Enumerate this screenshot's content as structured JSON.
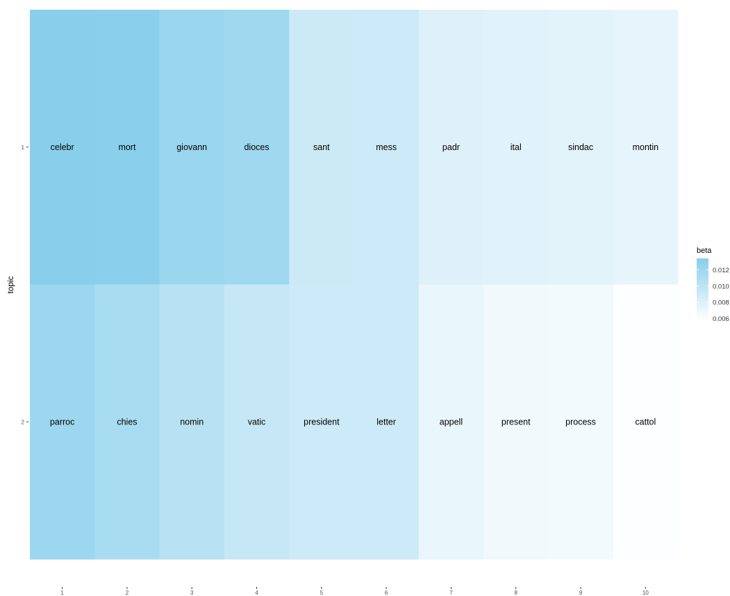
{
  "chart_data": {
    "type": "heatmap",
    "x_categories": [
      "1",
      "2",
      "3",
      "4",
      "5",
      "6",
      "7",
      "8",
      "9",
      "10"
    ],
    "y_categories": [
      "1",
      "2"
    ],
    "xlabel": "",
    "ylabel": "topic",
    "cells": [
      {
        "topic": "1",
        "rank": "1",
        "term": "celebr",
        "beta": 0.0133
      },
      {
        "topic": "1",
        "rank": "2",
        "term": "mort",
        "beta": 0.0132
      },
      {
        "topic": "1",
        "rank": "3",
        "term": "giovann",
        "beta": 0.0122
      },
      {
        "topic": "1",
        "rank": "4",
        "term": "dioces",
        "beta": 0.0119
      },
      {
        "topic": "1",
        "rank": "5",
        "term": "sant",
        "beta": 0.0091
      },
      {
        "topic": "1",
        "rank": "6",
        "term": "mess",
        "beta": 0.009
      },
      {
        "topic": "1",
        "rank": "7",
        "term": "padr",
        "beta": 0.0079
      },
      {
        "topic": "1",
        "rank": "8",
        "term": "ital",
        "beta": 0.0077
      },
      {
        "topic": "1",
        "rank": "9",
        "term": "sindac",
        "beta": 0.0076
      },
      {
        "topic": "1",
        "rank": "10",
        "term": "montin",
        "beta": 0.0074
      },
      {
        "topic": "2",
        "rank": "1",
        "term": "parroc",
        "beta": 0.012
      },
      {
        "topic": "2",
        "rank": "2",
        "term": "chies",
        "beta": 0.0113
      },
      {
        "topic": "2",
        "rank": "3",
        "term": "nomin",
        "beta": 0.0103
      },
      {
        "topic": "2",
        "rank": "4",
        "term": "vatic",
        "beta": 0.0094
      },
      {
        "topic": "2",
        "rank": "5",
        "term": "president",
        "beta": 0.009
      },
      {
        "topic": "2",
        "rank": "6",
        "term": "letter",
        "beta": 0.009
      },
      {
        "topic": "2",
        "rank": "7",
        "term": "appell",
        "beta": 0.0072
      },
      {
        "topic": "2",
        "rank": "8",
        "term": "present",
        "beta": 0.0067
      },
      {
        "topic": "2",
        "rank": "9",
        "term": "process",
        "beta": 0.0066
      },
      {
        "topic": "2",
        "rank": "10",
        "term": "cattol",
        "beta": 0.0059
      }
    ],
    "legend": {
      "title": "beta",
      "ticks": [
        "0.006",
        "0.008",
        "0.010",
        "0.012"
      ],
      "tick_values": [
        0.006,
        0.008,
        0.01,
        0.012
      ],
      "range": [
        0.0058,
        0.0134
      ],
      "placement": "right"
    },
    "colors": {
      "low": "#ffffff",
      "high": "#87ceeb"
    },
    "grid": false
  }
}
